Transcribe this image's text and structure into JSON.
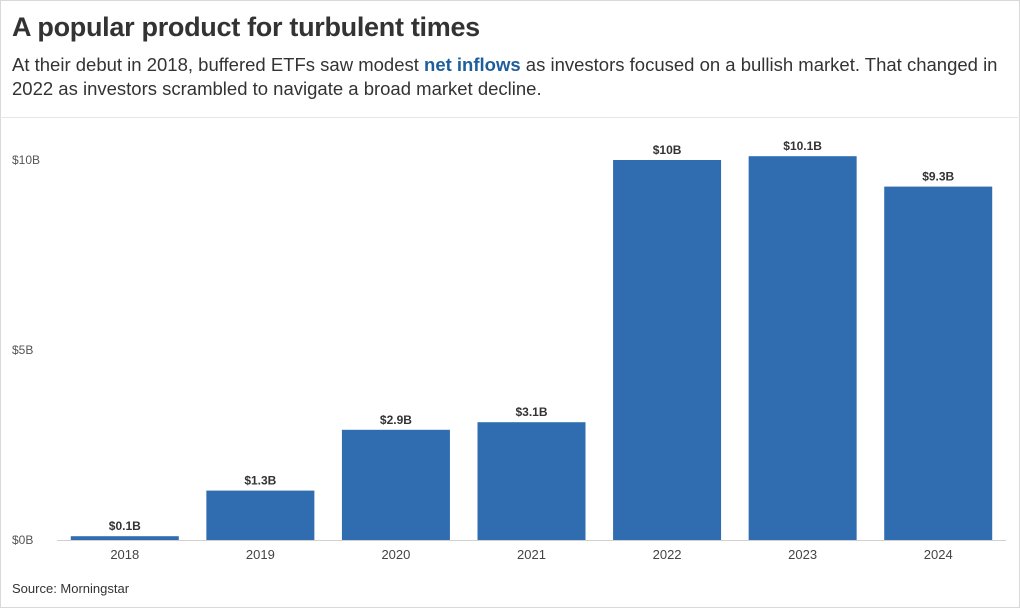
{
  "header": {
    "title": "A popular product for turbulent times",
    "subtitle_before": "At their debut in 2018, buffered ETFs saw modest ",
    "subtitle_highlight": "net inflows",
    "subtitle_after": " as investors focused on a bullish market. That changed in 2022 as investors scrambled to navigate a broad market decline."
  },
  "footer": {
    "source": "Source: Morningstar"
  },
  "colors": {
    "bar": "#306db0",
    "highlight": "#1f5e9b",
    "text": "#333333"
  },
  "chart_data": {
    "type": "bar",
    "title": "A popular product for turbulent times",
    "xlabel": "",
    "ylabel": "",
    "categories": [
      "2018",
      "2019",
      "2020",
      "2021",
      "2022",
      "2023",
      "2024"
    ],
    "values": [
      0.1,
      1.3,
      2.9,
      3.1,
      10,
      10.1,
      9.3
    ],
    "data_labels": [
      "$0.1B",
      "$1.3B",
      "$2.9B",
      "$3.1B",
      "$10B",
      "$10.1B",
      "$9.3B"
    ],
    "ylim": [
      0,
      11
    ],
    "yticks": [
      0,
      5,
      10
    ],
    "ytick_labels": [
      "$0B",
      "$5B",
      "$10B"
    ],
    "grid": false,
    "legend": "none"
  }
}
